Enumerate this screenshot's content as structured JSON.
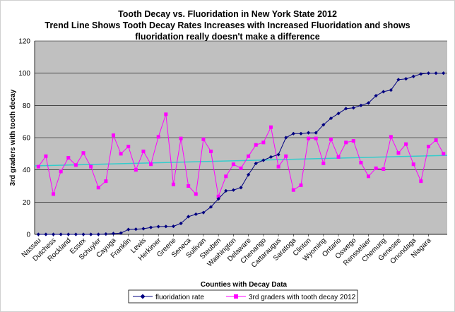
{
  "chart_data": {
    "type": "line",
    "title_lines": [
      "Tooth Decay vs. Fluoridation in New York State 2012",
      "Trend Line Shows Tooth Decay Rates Increases with Increased Fluoridation and shows",
      "fluoridation really doesn't make a difference"
    ],
    "xlabel": "Counties with Decay Data",
    "ylabel": "3rd graders with tooth decay",
    "ylim": [
      0,
      120
    ],
    "yticks": [
      0,
      20,
      40,
      60,
      80,
      100,
      120
    ],
    "grid": true,
    "n_points": 55,
    "x_tick_labels": [
      {
        "index": 0,
        "label": "Nassau"
      },
      {
        "index": 2,
        "label": "Dutchess"
      },
      {
        "index": 4,
        "label": "Rockland"
      },
      {
        "index": 6,
        "label": "Essex"
      },
      {
        "index": 8,
        "label": "Schuyler"
      },
      {
        "index": 10,
        "label": "Cayuga"
      },
      {
        "index": 12,
        "label": "Franklin"
      },
      {
        "index": 14,
        "label": "Lewis"
      },
      {
        "index": 16,
        "label": "Herkimer"
      },
      {
        "index": 18,
        "label": "Greene"
      },
      {
        "index": 20,
        "label": "Seneca"
      },
      {
        "index": 22,
        "label": "Sullivan"
      },
      {
        "index": 24,
        "label": "Steuben"
      },
      {
        "index": 26,
        "label": "Washington"
      },
      {
        "index": 28,
        "label": "Delaware"
      },
      {
        "index": 30,
        "label": "Chenango"
      },
      {
        "index": 32,
        "label": "Cattaraugus"
      },
      {
        "index": 34,
        "label": "Saratoga"
      },
      {
        "index": 36,
        "label": "Clinton"
      },
      {
        "index": 38,
        "label": "Wyoming"
      },
      {
        "index": 40,
        "label": "Ontario"
      },
      {
        "index": 42,
        "label": "Oswego"
      },
      {
        "index": 44,
        "label": "Rensselaer"
      },
      {
        "index": 46,
        "label": "Chemung"
      },
      {
        "index": 48,
        "label": "Genesee"
      },
      {
        "index": 50,
        "label": "Onondaga"
      },
      {
        "index": 52,
        "label": "Niagara"
      }
    ],
    "series": [
      {
        "name": "fluoridation rate",
        "color": "#000080",
        "marker": "diamond",
        "values": [
          0,
          0,
          0,
          0,
          0,
          0,
          0,
          0,
          0,
          0.2,
          0.5,
          0.8,
          3,
          3.2,
          3.5,
          4.3,
          4.8,
          4.9,
          5,
          6.8,
          11,
          12.5,
          13.5,
          17,
          22,
          27,
          27.5,
          29,
          37,
          44,
          46,
          48,
          49.5,
          60,
          62.5,
          62.5,
          63,
          63,
          68,
          72,
          75,
          78,
          78.5,
          80,
          81.5,
          86,
          88.5,
          89.5,
          96,
          96.5,
          98,
          99.5,
          100,
          100,
          100
        ]
      },
      {
        "name": "3rd graders with tooth decay 2012",
        "color": "#ff00ff",
        "marker": "square",
        "values": [
          42,
          48.5,
          25,
          39,
          47.5,
          43,
          50.5,
          42,
          29,
          33,
          61.5,
          50,
          54.5,
          40,
          51.5,
          43.5,
          60.5,
          74.5,
          31,
          59.5,
          30,
          25,
          59,
          51.5,
          23.5,
          36,
          43.5,
          41,
          48.5,
          55.5,
          57,
          66.5,
          42,
          48.5,
          27.5,
          30.5,
          59.5,
          59.5,
          44,
          59,
          48,
          57,
          58,
          44.5,
          36,
          41,
          40.5,
          60.5,
          50.5,
          56,
          43.5,
          33,
          54.5,
          58.5,
          50
        ]
      },
      {
        "name": "trend",
        "color": "#33cccc",
        "values": [
          42.5,
          49
        ]
      }
    ]
  }
}
